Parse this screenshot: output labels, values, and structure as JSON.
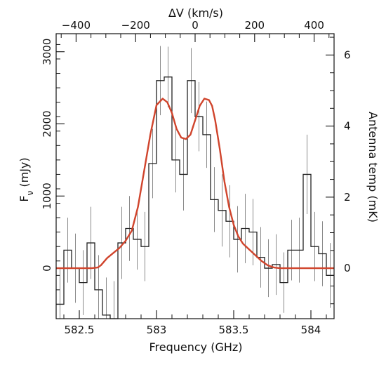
{
  "chart_data": {
    "type": "line",
    "title": "",
    "xlabel": "Frequency (GHz)",
    "ylabel": "F",
    "ylabel_sub": "ν",
    "ylabel_unit": " (mJy)",
    "top_xlabel": "ΔV (km/s)",
    "right_ylabel": "Antenna temp (mK)",
    "xlim": [
      582.35,
      584.15
    ],
    "ylim": [
      -700,
      3250
    ],
    "top_xlim": [
      -467,
      467
    ],
    "right_ylim": [
      -1.42,
      6.6
    ],
    "x_ticks": [
      582.5,
      583,
      583.5,
      584
    ],
    "x_tick_labels": [
      "582.5",
      "583",
      "583.5",
      "584"
    ],
    "y_ticks": [
      0,
      1000,
      2000,
      3000
    ],
    "y_tick_labels": [
      "0",
      "1000",
      "2000",
      "3000"
    ],
    "top_ticks": [
      -400,
      -200,
      0,
      200,
      400
    ],
    "top_tick_labels": [
      "−400",
      "−200",
      "0",
      "200",
      "400"
    ],
    "right_ticks": [
      0,
      2,
      4,
      6
    ],
    "right_tick_labels": [
      "0",
      "2",
      "4",
      "6"
    ],
    "grid": false,
    "legend": "none",
    "colors": {
      "histogram": "#222222",
      "errorbar": "#8a8a8a",
      "fit": "#d0442c"
    },
    "series": [
      {
        "kind": "histogram",
        "bin_width": 0.05,
        "x": [
          582.375,
          582.425,
          582.475,
          582.525,
          582.575,
          582.625,
          582.675,
          582.725,
          582.775,
          582.825,
          582.875,
          582.925,
          582.975,
          583.025,
          583.075,
          583.125,
          583.175,
          583.225,
          583.275,
          583.325,
          583.375,
          583.425,
          583.475,
          583.525,
          583.575,
          583.625,
          583.675,
          583.725,
          583.775,
          583.825,
          583.875,
          583.925,
          583.975,
          584.025,
          584.075,
          584.125
        ],
        "y": [
          -500,
          250,
          0,
          -200,
          350,
          -300,
          -650,
          -700,
          350,
          550,
          400,
          300,
          1450,
          2600,
          2650,
          1500,
          1300,
          2600,
          2100,
          1850,
          950,
          800,
          650,
          400,
          550,
          500,
          150,
          0,
          50,
          -200,
          250,
          250,
          1300,
          300,
          200,
          -100
        ],
        "yerr": [
          500,
          450,
          480,
          450,
          500,
          480,
          520,
          520,
          500,
          450,
          420,
          480,
          480,
          480,
          420,
          450,
          500,
          450,
          480,
          460,
          450,
          500,
          500,
          460,
          480,
          460,
          420,
          400,
          420,
          420,
          420,
          450,
          550,
          480,
          450,
          450
        ]
      },
      {
        "kind": "fit",
        "note_free": true,
        "x": [
          582.35,
          582.5,
          582.58,
          582.62,
          582.64,
          582.66,
          582.68,
          582.72,
          582.76,
          582.8,
          582.84,
          582.88,
          582.92,
          582.96,
          583.0,
          583.04,
          583.07,
          583.1,
          583.13,
          583.16,
          583.19,
          583.22,
          583.25,
          583.28,
          583.31,
          583.34,
          583.36,
          583.38,
          583.41,
          583.44,
          583.47,
          583.5,
          583.53,
          583.56,
          583.6,
          583.64,
          583.68,
          583.72,
          583.76,
          583.8,
          583.85,
          583.9,
          584.15
        ],
        "y": [
          0,
          0,
          0,
          10,
          40,
          90,
          140,
          210,
          280,
          380,
          520,
          850,
          1350,
          1850,
          2260,
          2350,
          2300,
          2150,
          1930,
          1810,
          1790,
          1850,
          2050,
          2250,
          2350,
          2330,
          2250,
          2050,
          1650,
          1200,
          850,
          600,
          440,
          340,
          260,
          180,
          100,
          40,
          10,
          0,
          0,
          0,
          0
        ]
      }
    ]
  }
}
